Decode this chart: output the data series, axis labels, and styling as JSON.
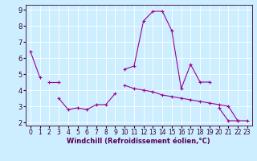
{
  "background_color": "#cceeff",
  "line_color": "#990099",
  "marker_color": "#990099",
  "xlabel": "Windchill (Refroidissement éolien,°C)",
  "xlabel_fontsize": 6,
  "tick_fontsize": 5.5,
  "xlim": [
    -0.5,
    23.5
  ],
  "ylim": [
    1.8,
    9.3
  ],
  "yticks": [
    2,
    3,
    4,
    5,
    6,
    7,
    8,
    9
  ],
  "xticks": [
    0,
    1,
    2,
    3,
    4,
    5,
    6,
    7,
    8,
    9,
    10,
    11,
    12,
    13,
    14,
    15,
    16,
    17,
    18,
    19,
    20,
    21,
    22,
    23
  ],
  "series": [
    [
      6.4,
      4.8,
      null,
      null,
      null,
      null,
      null,
      null,
      null,
      null,
      5.3,
      5.5,
      8.3,
      8.9,
      8.9,
      7.7,
      4.1,
      5.6,
      4.5,
      4.5,
      null,
      null,
      null,
      null
    ],
    [
      null,
      null,
      4.5,
      4.5,
      null,
      null,
      null,
      null,
      null,
      null,
      null,
      null,
      null,
      null,
      null,
      null,
      null,
      null,
      null,
      null,
      null,
      null,
      null,
      null
    ],
    [
      null,
      null,
      null,
      3.5,
      2.8,
      2.9,
      2.8,
      3.1,
      3.1,
      3.8,
      null,
      null,
      null,
      null,
      null,
      null,
      null,
      null,
      null,
      null,
      null,
      null,
      null,
      null
    ],
    [
      null,
      null,
      null,
      null,
      null,
      null,
      null,
      null,
      null,
      null,
      4.3,
      4.1,
      4.0,
      3.9,
      3.7,
      3.6,
      3.5,
      3.4,
      3.3,
      3.2,
      3.1,
      3.0,
      2.1,
      2.1
    ],
    [
      null,
      null,
      null,
      null,
      null,
      null,
      null,
      null,
      null,
      null,
      null,
      null,
      null,
      null,
      null,
      null,
      null,
      null,
      null,
      null,
      2.9,
      2.1,
      2.1,
      null
    ]
  ]
}
